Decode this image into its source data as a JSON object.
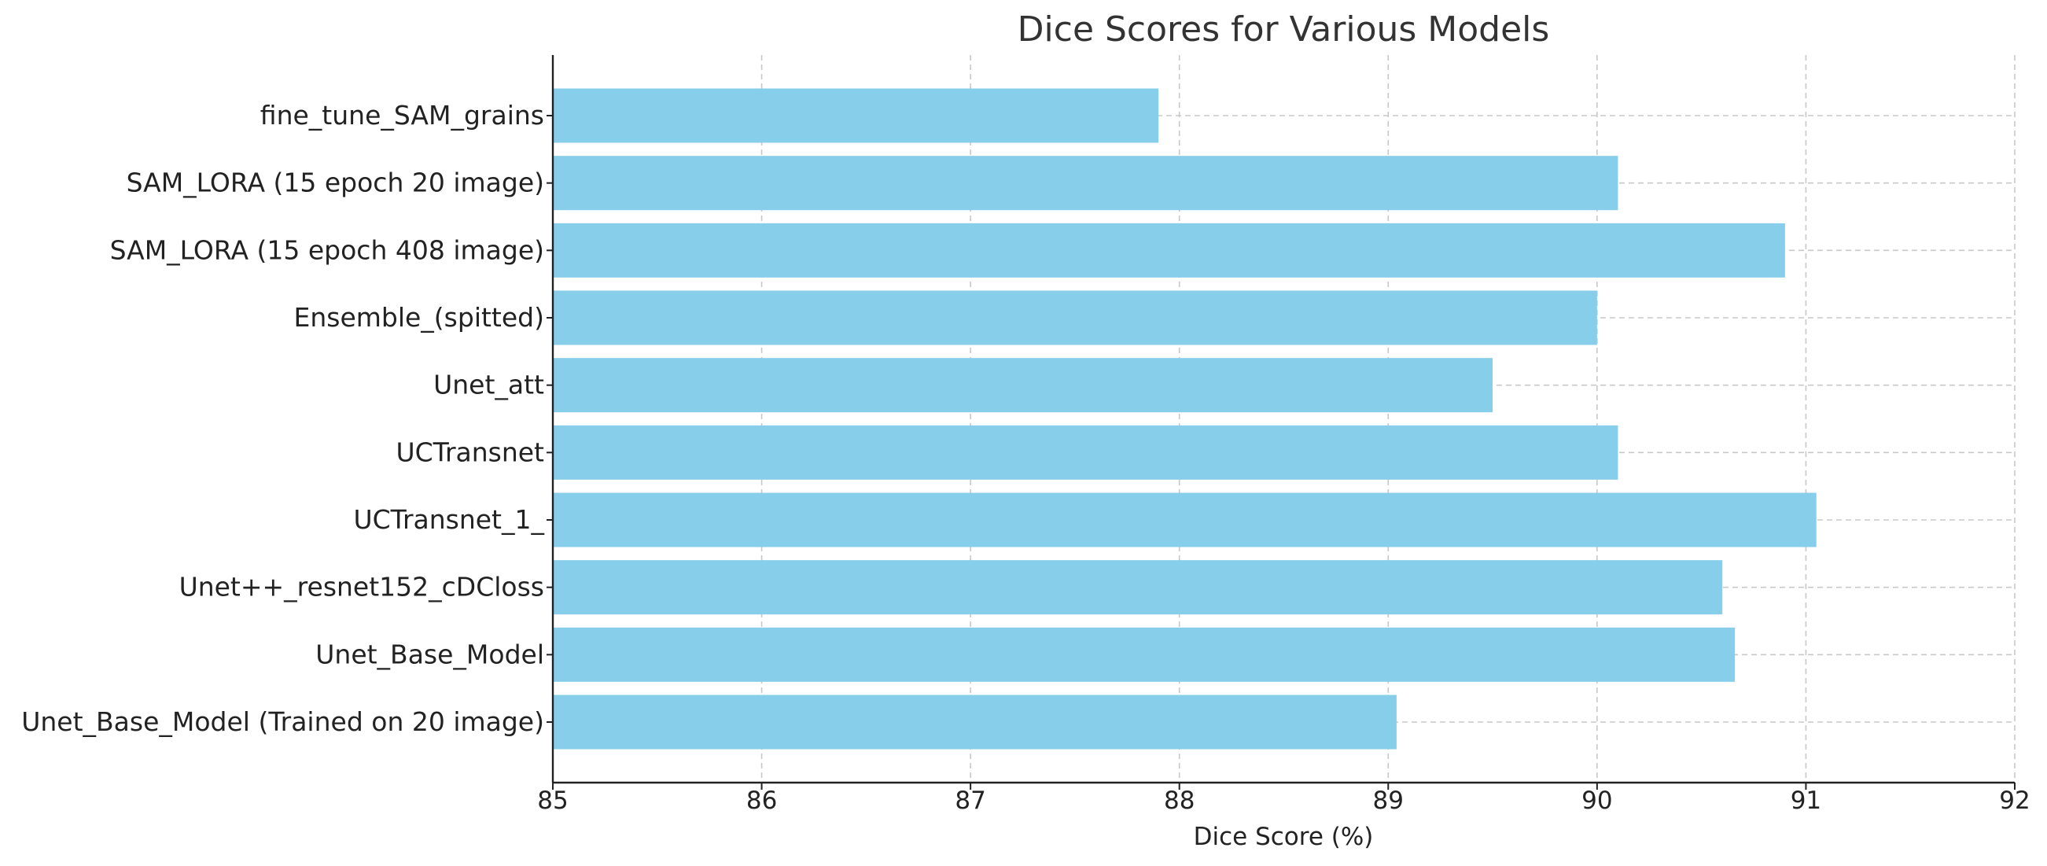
{
  "chart_data": {
    "type": "bar",
    "orientation": "horizontal",
    "title": "Dice Scores for Various Models",
    "xlabel": "Dice Score (%)",
    "ylabel": "",
    "xlim": [
      85,
      92
    ],
    "xticks": [
      85,
      86,
      87,
      88,
      89,
      90,
      91,
      92
    ],
    "grid": true,
    "bar_color": "#87CEEB",
    "categories": [
      "fine_tune_SAM_grains",
      "SAM_LORA (15 epoch 20 image)",
      "SAM_LORA (15 epoch 408 image)",
      "Ensemble_(spitted)",
      "Unet_att",
      "UCTransnet",
      "UCTransnet_1_",
      "Unet++_resnet152_cDCloss",
      "Unet_Base_Model",
      "Unet_Base_Model (Trained on 20 image)"
    ],
    "values": [
      87.9,
      90.1,
      90.9,
      90.0,
      89.5,
      90.1,
      91.05,
      90.6,
      90.66,
      89.04
    ]
  }
}
